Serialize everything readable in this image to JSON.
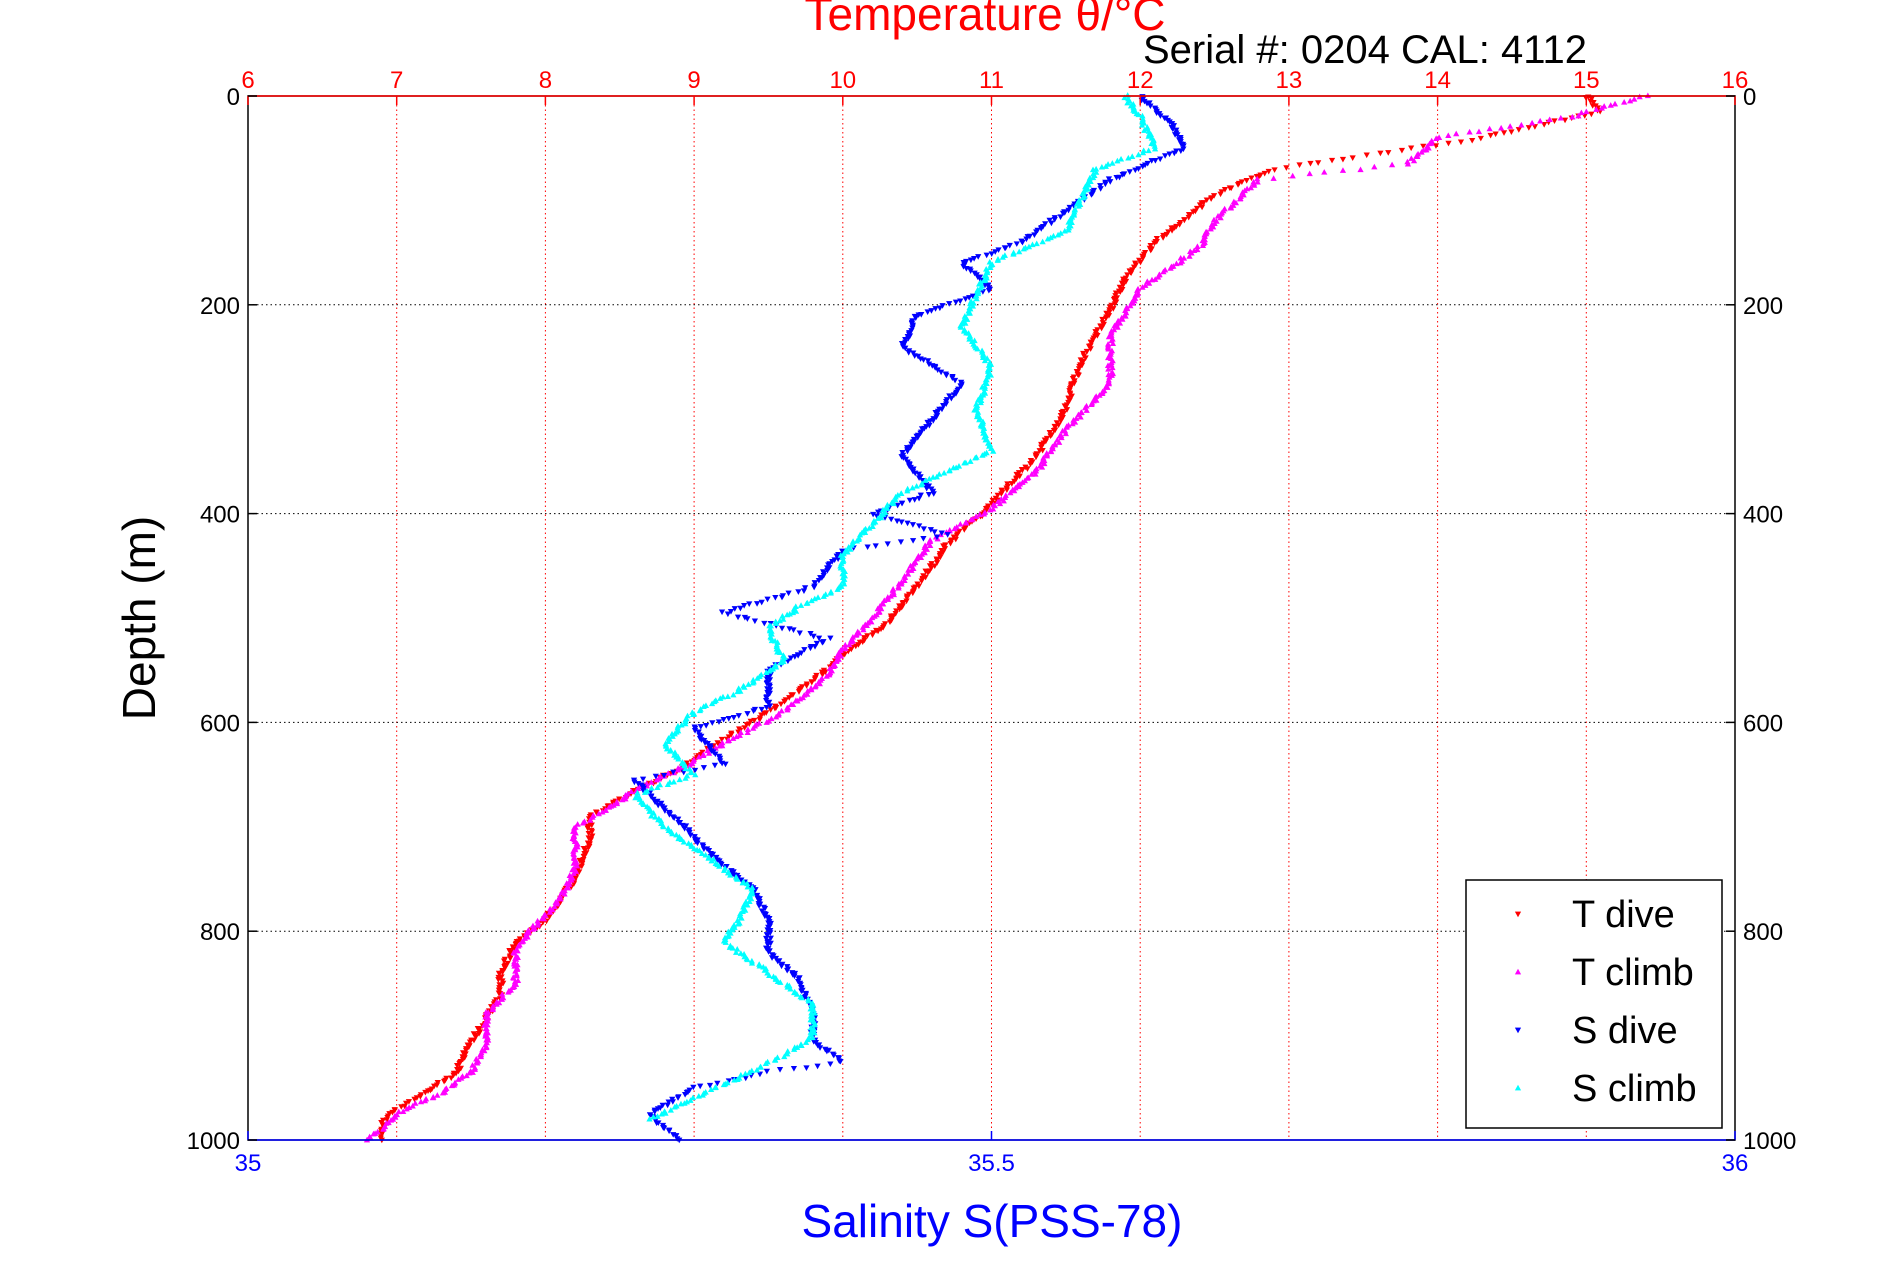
{
  "chart_data": {
    "type": "scatter",
    "title": "Temperature θ/°C",
    "subtitle": "Serial #: 0204  CAL: 4112",
    "ylabel": "Depth (m)",
    "x2label": "Salinity S(PSS-78)",
    "y_axis": {
      "range": [
        0,
        1000
      ],
      "reversed": true,
      "ticks": [
        "0",
        "200",
        "400",
        "600",
        "800",
        "1000"
      ],
      "grid": true
    },
    "temperature_axis": {
      "position": "top",
      "range": [
        6,
        16
      ],
      "ticks": [
        "6",
        "7",
        "8",
        "9",
        "10",
        "11",
        "12",
        "13",
        "14",
        "15",
        "16"
      ],
      "color": "#ff0000",
      "grid": true
    },
    "salinity_axis": {
      "position": "bottom",
      "range": [
        35,
        36
      ],
      "ticks": [
        "35",
        "35.5",
        "36"
      ],
      "color": "#0000ff"
    },
    "legend": {
      "placement": "bottom-right",
      "entries": [
        "T dive",
        "T climb",
        "S dive",
        "S climb"
      ]
    },
    "series": [
      {
        "name": "T dive",
        "axis": "temperature",
        "color": "#ff0000",
        "marker": "triangle-down",
        "points": [
          [
            15.0,
            0
          ],
          [
            15.1,
            15
          ],
          [
            14.3,
            40
          ],
          [
            13.6,
            55
          ],
          [
            12.9,
            70
          ],
          [
            12.5,
            95
          ],
          [
            12.1,
            140
          ],
          [
            11.9,
            175
          ],
          [
            11.8,
            205
          ],
          [
            11.6,
            255
          ],
          [
            11.5,
            300
          ],
          [
            11.3,
            345
          ],
          [
            11.1,
            375
          ],
          [
            10.9,
            405
          ],
          [
            10.7,
            430
          ],
          [
            10.5,
            470
          ],
          [
            10.3,
            505
          ],
          [
            10.0,
            535
          ],
          [
            9.8,
            560
          ],
          [
            9.5,
            590
          ],
          [
            9.1,
            625
          ],
          [
            8.9,
            645
          ],
          [
            8.6,
            665
          ],
          [
            8.3,
            690
          ],
          [
            8.3,
            710
          ],
          [
            8.2,
            750
          ],
          [
            8.0,
            790
          ],
          [
            7.8,
            810
          ],
          [
            7.7,
            840
          ],
          [
            7.7,
            860
          ],
          [
            7.6,
            885
          ],
          [
            7.5,
            905
          ],
          [
            7.4,
            935
          ],
          [
            7.2,
            955
          ],
          [
            7.0,
            970
          ],
          [
            6.9,
            985
          ],
          [
            6.9,
            1000
          ]
        ]
      },
      {
        "name": "T climb",
        "axis": "temperature",
        "color": "#ff00ff",
        "marker": "triangle-up",
        "points": [
          [
            15.4,
            0
          ],
          [
            14.9,
            20
          ],
          [
            14.0,
            40
          ],
          [
            13.8,
            65
          ],
          [
            12.8,
            80
          ],
          [
            12.5,
            120
          ],
          [
            12.4,
            145
          ],
          [
            12.0,
            185
          ],
          [
            11.8,
            230
          ],
          [
            11.8,
            275
          ],
          [
            11.5,
            320
          ],
          [
            11.3,
            360
          ],
          [
            11.0,
            395
          ],
          [
            10.6,
            425
          ],
          [
            10.4,
            465
          ],
          [
            10.2,
            500
          ],
          [
            10.0,
            530
          ],
          [
            9.9,
            555
          ],
          [
            9.6,
            590
          ],
          [
            9.2,
            620
          ],
          [
            8.9,
            645
          ],
          [
            8.6,
            665
          ],
          [
            8.4,
            685
          ],
          [
            8.2,
            700
          ],
          [
            8.2,
            740
          ],
          [
            8.1,
            770
          ],
          [
            7.9,
            800
          ],
          [
            7.8,
            820
          ],
          [
            7.8,
            850
          ],
          [
            7.6,
            880
          ],
          [
            7.6,
            910
          ],
          [
            7.5,
            935
          ],
          [
            7.3,
            955
          ],
          [
            7.0,
            975
          ],
          [
            6.9,
            990
          ],
          [
            6.8,
            1000
          ]
        ]
      },
      {
        "name": "S dive",
        "axis": "salinity",
        "color": "#0000ff",
        "marker": "triangle-down",
        "points": [
          [
            35.6,
            0
          ],
          [
            35.62,
            25
          ],
          [
            35.63,
            50
          ],
          [
            35.58,
            80
          ],
          [
            35.55,
            110
          ],
          [
            35.52,
            140
          ],
          [
            35.48,
            160
          ],
          [
            35.5,
            185
          ],
          [
            35.45,
            210
          ],
          [
            35.44,
            240
          ],
          [
            35.48,
            275
          ],
          [
            35.46,
            310
          ],
          [
            35.44,
            345
          ],
          [
            35.46,
            380
          ],
          [
            35.42,
            400
          ],
          [
            35.47,
            420
          ],
          [
            35.4,
            435
          ],
          [
            35.38,
            470
          ],
          [
            35.32,
            495
          ],
          [
            35.39,
            520
          ],
          [
            35.35,
            550
          ],
          [
            35.35,
            585
          ],
          [
            35.3,
            605
          ],
          [
            35.32,
            640
          ],
          [
            35.26,
            655
          ],
          [
            35.27,
            670
          ],
          [
            35.29,
            695
          ],
          [
            35.31,
            725
          ],
          [
            35.34,
            760
          ],
          [
            35.35,
            790
          ],
          [
            35.35,
            820
          ],
          [
            35.37,
            845
          ],
          [
            35.38,
            880
          ],
          [
            35.38,
            905
          ],
          [
            35.4,
            925
          ],
          [
            35.35,
            935
          ],
          [
            35.3,
            950
          ],
          [
            35.27,
            975
          ],
          [
            35.29,
            1000
          ]
        ]
      },
      {
        "name": "S climb",
        "axis": "salinity",
        "color": "#00ffff",
        "marker": "triangle-up",
        "points": [
          [
            35.59,
            0
          ],
          [
            35.6,
            20
          ],
          [
            35.61,
            50
          ],
          [
            35.57,
            70
          ],
          [
            35.56,
            100
          ],
          [
            35.55,
            130
          ],
          [
            35.5,
            160
          ],
          [
            35.49,
            190
          ],
          [
            35.48,
            220
          ],
          [
            35.5,
            260
          ],
          [
            35.49,
            300
          ],
          [
            35.5,
            340
          ],
          [
            35.47,
            360
          ],
          [
            35.44,
            380
          ],
          [
            35.42,
            410
          ],
          [
            35.4,
            440
          ],
          [
            35.4,
            470
          ],
          [
            35.37,
            490
          ],
          [
            35.35,
            510
          ],
          [
            35.36,
            540
          ],
          [
            35.33,
            570
          ],
          [
            35.3,
            590
          ],
          [
            35.28,
            620
          ],
          [
            35.3,
            650
          ],
          [
            35.26,
            670
          ],
          [
            35.28,
            700
          ],
          [
            35.31,
            730
          ],
          [
            35.34,
            760
          ],
          [
            35.33,
            790
          ],
          [
            35.32,
            810
          ],
          [
            35.35,
            840
          ],
          [
            35.38,
            870
          ],
          [
            35.38,
            900
          ],
          [
            35.36,
            920
          ],
          [
            35.33,
            940
          ],
          [
            35.3,
            960
          ],
          [
            35.27,
            980
          ]
        ]
      }
    ]
  }
}
